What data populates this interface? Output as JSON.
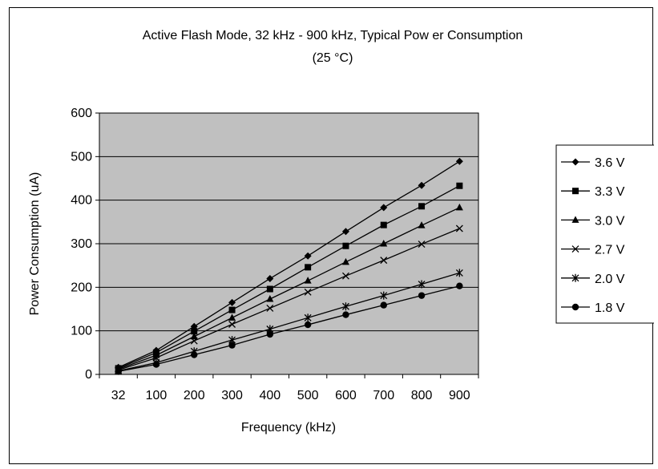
{
  "chart_data": {
    "type": "line",
    "title": "Active Flash Mode, 32 kHz - 900 kHz, Typical Pow er Consumption",
    "subtitle": "(25 °C)",
    "xlabel": "Frequency (kHz)",
    "ylabel": "Power Consumption (uA)",
    "categories": [
      "32",
      "100",
      "200",
      "300",
      "400",
      "500",
      "600",
      "700",
      "800",
      "900"
    ],
    "ylim": [
      0,
      600
    ],
    "yticks": [
      "0",
      "100",
      "200",
      "300",
      "400",
      "500",
      "600"
    ],
    "grid": true,
    "legend_position": "right",
    "plot_background": "#c0c0c0",
    "series": [
      {
        "name": "3.6 V",
        "marker": "diamond",
        "values": [
          16,
          55,
          110,
          165,
          220,
          272,
          328,
          383,
          434,
          489
        ]
      },
      {
        "name": "3.3 V",
        "marker": "square",
        "values": [
          14,
          50,
          99,
          148,
          196,
          246,
          295,
          343,
          386,
          433
        ]
      },
      {
        "name": "3.0 V",
        "marker": "triangle",
        "values": [
          12,
          44,
          87,
          130,
          173,
          215,
          258,
          300,
          342,
          383
        ]
      },
      {
        "name": "2.7 V",
        "marker": "x",
        "values": [
          10,
          38,
          77,
          115,
          152,
          189,
          226,
          262,
          299,
          335
        ]
      },
      {
        "name": "2.0 V",
        "marker": "star",
        "values": [
          8,
          27,
          53,
          79,
          104,
          130,
          156,
          181,
          207,
          233
        ]
      },
      {
        "name": "1.8 V",
        "marker": "circle",
        "values": [
          7,
          23,
          45,
          67,
          92,
          114,
          137,
          159,
          181,
          203
        ]
      }
    ]
  }
}
